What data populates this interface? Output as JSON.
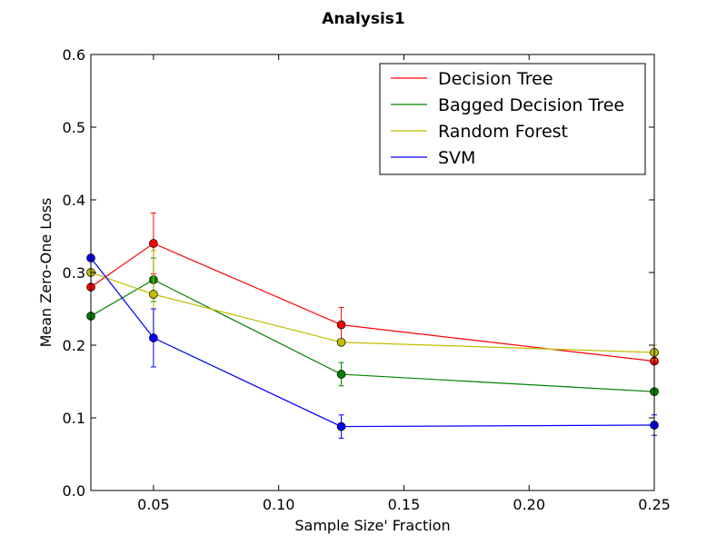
{
  "chart_data": {
    "type": "line",
    "title": "Analysis1",
    "xlabel": "Sample Size' Fraction",
    "ylabel": "Mean Zero-One Loss",
    "xlim": [
      0.025,
      0.25
    ],
    "ylim": [
      0.0,
      0.6
    ],
    "xticks": [
      0.05,
      0.1,
      0.15,
      0.2,
      0.25
    ],
    "xtick_labels": [
      "0.05",
      "0.10",
      "0.15",
      "0.20",
      "0.25"
    ],
    "yticks": [
      0.0,
      0.1,
      0.2,
      0.3,
      0.4,
      0.5,
      0.6
    ],
    "ytick_labels": [
      "0.0",
      "0.1",
      "0.2",
      "0.3",
      "0.4",
      "0.5",
      "0.6"
    ],
    "grid": false,
    "legend_position": "top-right",
    "x": [
      0.025,
      0.05,
      0.125,
      0.25
    ],
    "series": [
      {
        "name": "Decision Tree",
        "color": "#ff0000",
        "values": [
          0.28,
          0.34,
          0.228,
          0.178
        ],
        "errors": [
          0.0,
          0.042,
          0.024,
          0.0
        ]
      },
      {
        "name": "Bagged Decision Tree",
        "color": "#008000",
        "values": [
          0.24,
          0.29,
          0.16,
          0.136
        ],
        "errors": [
          0.0,
          0.03,
          0.016,
          0.0
        ]
      },
      {
        "name": "Random Forest",
        "color": "#bfbf00",
        "values": [
          0.3,
          0.27,
          0.204,
          0.19
        ],
        "errors": [
          0.0,
          0.06,
          0.0,
          0.01
        ]
      },
      {
        "name": "SVM",
        "color": "#0000ff",
        "values": [
          0.32,
          0.21,
          0.088,
          0.09
        ],
        "errors": [
          0.0,
          0.04,
          0.016,
          0.014
        ]
      }
    ]
  }
}
